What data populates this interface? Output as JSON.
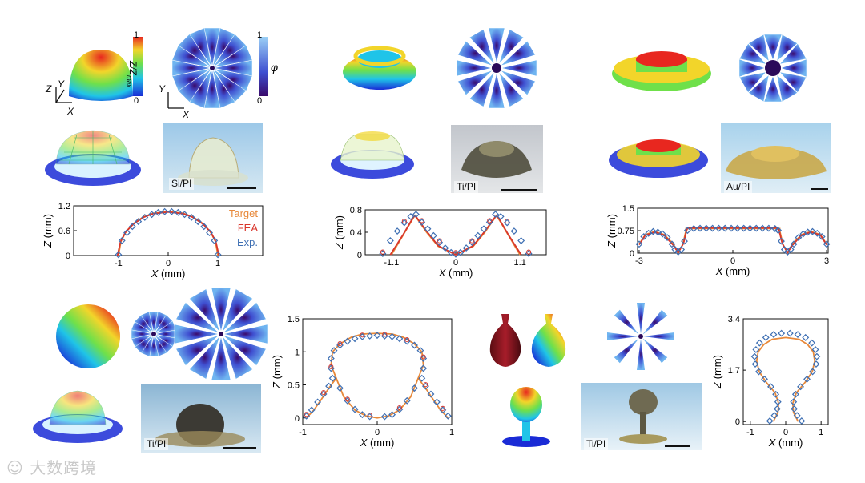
{
  "colorbars": {
    "height": {
      "top": "1",
      "bottom": "0",
      "label_main": "Z/Z",
      "label_sub": "max"
    },
    "angle": {
      "top": "1",
      "bottom": "0",
      "label": "φ"
    }
  },
  "axes_glyph": {
    "x": "X",
    "y": "Y",
    "z": "Z"
  },
  "materials": [
    "Si/PI",
    "Ti/PI",
    "Au/PI",
    "Ti/PI",
    "Ti/PI"
  ],
  "legend": [
    {
      "label": "Target",
      "color": "#E8893A"
    },
    {
      "label": "FEA",
      "color": "#D9352B"
    },
    {
      "label": "Exp.",
      "color": "#3E6FB3"
    }
  ],
  "chart_data": [
    {
      "type": "line",
      "name": "hemisphere",
      "xlabel_var": "X",
      "xlabel_unit": " (mm)",
      "ylabel_var": "Z",
      "ylabel_unit": " (mm)",
      "xlim": [
        -1.9,
        1.9
      ],
      "ylim": [
        0,
        1.2
      ],
      "xticks": [
        -1,
        0,
        1
      ],
      "xticklabels": [
        "-1",
        "0",
        "1"
      ],
      "yticks": [
        0,
        0.6,
        1.2
      ],
      "yticklabels": [
        "0",
        "0.6",
        "1.2"
      ],
      "target": {
        "x": [
          -1.0,
          -0.95,
          -0.85,
          -0.7,
          -0.5,
          -0.3,
          0,
          0.3,
          0.5,
          0.7,
          0.85,
          0.95,
          1.0
        ],
        "y": [
          0,
          0.34,
          0.57,
          0.77,
          0.93,
          1.02,
          1.06,
          1.02,
          0.93,
          0.77,
          0.57,
          0.34,
          0
        ]
      },
      "fea": {
        "x": [
          -1.02,
          -0.96,
          -0.86,
          -0.7,
          -0.5,
          -0.3,
          0,
          0.3,
          0.5,
          0.7,
          0.86,
          0.96,
          1.02
        ],
        "y": [
          0,
          0.33,
          0.56,
          0.76,
          0.92,
          1.01,
          1.05,
          1.01,
          0.92,
          0.76,
          0.56,
          0.33,
          0
        ]
      },
      "exp": {
        "x": [
          -1.0,
          -0.93,
          -0.83,
          -0.72,
          -0.6,
          -0.47,
          -0.33,
          -0.2,
          -0.07,
          0.07,
          0.2,
          0.33,
          0.47,
          0.6,
          0.72,
          0.83,
          0.93,
          1.0
        ],
        "y": [
          0.02,
          0.36,
          0.55,
          0.7,
          0.82,
          0.92,
          0.99,
          1.04,
          1.06,
          1.06,
          1.04,
          0.99,
          0.92,
          0.82,
          0.7,
          0.55,
          0.36,
          0.02
        ]
      }
    },
    {
      "type": "line",
      "name": "cone-ring",
      "xlabel_var": "X",
      "xlabel_unit": " (mm)",
      "ylabel_var": "Z",
      "ylabel_unit": " (mm)",
      "xlim": [
        -1.55,
        1.55
      ],
      "ylim": [
        0,
        0.8
      ],
      "xticks": [
        -1.1,
        0,
        1.1
      ],
      "xticklabels": [
        "-1.1",
        "0",
        "1.1"
      ],
      "yticks": [
        0,
        0.4,
        0.8
      ],
      "yticklabels": [
        "0",
        "0.4",
        "0.8"
      ],
      "target": {
        "x": [
          -1.1,
          -0.9,
          -0.7,
          -0.5,
          -0.3,
          0,
          0.3,
          0.5,
          0.7,
          0.9,
          1.1
        ],
        "y": [
          0,
          0.35,
          0.7,
          0.4,
          0.15,
          0,
          0.15,
          0.4,
          0.7,
          0.35,
          0
        ]
      },
      "fea": {
        "x": [
          -1.12,
          -0.9,
          -0.72,
          -0.68,
          -0.5,
          -0.3,
          0,
          0.3,
          0.5,
          0.68,
          0.72,
          0.9,
          1.12
        ],
        "y": [
          0,
          0.36,
          0.68,
          0.68,
          0.42,
          0.16,
          0,
          0.16,
          0.42,
          0.68,
          0.68,
          0.36,
          0
        ]
      },
      "exp": {
        "x": [
          -1.25,
          -1.12,
          -1.0,
          -0.88,
          -0.77,
          -0.68,
          -0.58,
          -0.48,
          -0.38,
          -0.28,
          -0.18,
          -0.08,
          0.0,
          0.08,
          0.18,
          0.28,
          0.38,
          0.48,
          0.58,
          0.68,
          0.77,
          0.88,
          1.0,
          1.12,
          1.25
        ],
        "y": [
          0.02,
          0.25,
          0.42,
          0.57,
          0.68,
          0.72,
          0.58,
          0.46,
          0.34,
          0.22,
          0.12,
          0.04,
          0.01,
          0.04,
          0.12,
          0.22,
          0.34,
          0.46,
          0.58,
          0.72,
          0.68,
          0.57,
          0.42,
          0.25,
          0.02
        ]
      }
    },
    {
      "type": "line",
      "name": "disk-ring",
      "xlabel_var": "X",
      "xlabel_unit": " (mm)",
      "ylabel_var": "Z",
      "ylabel_unit": " (mm)",
      "xlim": [
        -3.05,
        3.05
      ],
      "ylim": [
        0,
        1.5
      ],
      "xticks": [
        -3,
        0,
        3
      ],
      "xticklabels": [
        "-3",
        "0",
        "3"
      ],
      "yticks": [
        0,
        0.75,
        1.5
      ],
      "yticklabels": [
        "0",
        "0.75",
        "1.5"
      ],
      "target": {
        "x": [
          -3.0,
          -2.8,
          -2.5,
          -2.2,
          -1.9,
          -1.75,
          -1.6,
          -1.5,
          -1.5,
          -0.5,
          0.5,
          1.5,
          1.5,
          1.6,
          1.75,
          1.9,
          2.2,
          2.5,
          2.8,
          3.0
        ],
        "y": [
          0.3,
          0.62,
          0.72,
          0.62,
          0.3,
          0.0,
          0.3,
          0.75,
          0.82,
          0.82,
          0.82,
          0.82,
          0.75,
          0.3,
          0.0,
          0.3,
          0.62,
          0.72,
          0.62,
          0.3
        ]
      },
      "fea": {
        "x": [
          -3.0,
          -2.8,
          -2.5,
          -2.2,
          -1.92,
          -1.75,
          -1.58,
          -1.48,
          -1.45,
          -0.5,
          0.5,
          1.45,
          1.48,
          1.58,
          1.75,
          1.92,
          2.2,
          2.5,
          2.8,
          3.0
        ],
        "y": [
          0.28,
          0.6,
          0.7,
          0.6,
          0.28,
          0.02,
          0.32,
          0.76,
          0.84,
          0.84,
          0.84,
          0.84,
          0.76,
          0.32,
          0.02,
          0.28,
          0.6,
          0.7,
          0.6,
          0.28
        ]
      },
      "exp": {
        "x": [
          -3.0,
          -2.85,
          -2.7,
          -2.55,
          -2.4,
          -2.25,
          -2.1,
          -1.95,
          -1.85,
          -1.75,
          -1.65,
          -1.55,
          -1.45,
          -1.25,
          -1.05,
          -0.85,
          -0.65,
          -0.45,
          -0.25,
          -0.05,
          0.15,
          0.35,
          0.55,
          0.75,
          0.95,
          1.15,
          1.35,
          1.45,
          1.55,
          1.65,
          1.75,
          1.85,
          1.95,
          2.1,
          2.25,
          2.4,
          2.55,
          2.7,
          2.85,
          3.0
        ],
        "y": [
          0.3,
          0.55,
          0.66,
          0.72,
          0.7,
          0.64,
          0.52,
          0.3,
          0.12,
          0.04,
          0.12,
          0.4,
          0.76,
          0.82,
          0.83,
          0.83,
          0.83,
          0.83,
          0.83,
          0.83,
          0.83,
          0.83,
          0.83,
          0.83,
          0.83,
          0.83,
          0.82,
          0.76,
          0.4,
          0.12,
          0.04,
          0.12,
          0.3,
          0.52,
          0.64,
          0.7,
          0.72,
          0.66,
          0.55,
          0.3
        ]
      }
    },
    {
      "type": "line",
      "name": "sphere",
      "xlabel_var": "X",
      "xlabel_unit": " (mm)",
      "ylabel_var": "Z",
      "ylabel_unit": " (mm)",
      "xlim": [
        -1.0,
        1.0
      ],
      "ylim": [
        -0.1,
        1.5
      ],
      "xticks": [
        -1,
        0,
        1
      ],
      "xticklabels": [
        "-1",
        "0",
        "1"
      ],
      "yticks": [
        0,
        0.5,
        1,
        1.5
      ],
      "yticklabels": [
        "0",
        "0.5",
        "1",
        "1.5"
      ],
      "target": {
        "x": [
          -0.95,
          -0.85,
          -0.75,
          -0.65,
          -0.55,
          -0.62,
          -0.6,
          -0.5,
          -0.35,
          -0.2,
          0,
          0.2,
          0.35,
          0.5,
          0.6,
          0.62,
          0.55,
          0.65,
          0.75,
          0.85,
          0.95
        ],
        "y": [
          0,
          0.12,
          0.28,
          0.45,
          0.6,
          0.8,
          1.0,
          1.12,
          1.22,
          1.27,
          1.28,
          1.27,
          1.22,
          1.12,
          1.0,
          0.8,
          0.6,
          0.45,
          0.28,
          0.12,
          0
        ]
      },
      "target_inner": {
        "x": [
          -0.55,
          -0.45,
          -0.3,
          -0.15,
          0,
          0.15,
          0.3,
          0.45,
          0.55
        ],
        "y": [
          0.6,
          0.32,
          0.12,
          0.03,
          0,
          0.03,
          0.12,
          0.32,
          0.6
        ]
      },
      "exp": {
        "x": [
          -0.95,
          -0.88,
          -0.8,
          -0.72,
          -0.65,
          -0.6,
          -0.62,
          -0.62,
          -0.58,
          -0.5,
          -0.4,
          -0.3,
          -0.2,
          -0.1,
          0,
          0.1,
          0.2,
          0.3,
          0.4,
          0.5,
          0.58,
          0.62,
          0.62,
          0.6,
          0.65,
          0.72,
          0.8,
          0.88,
          0.95,
          -0.5,
          -0.4,
          -0.3,
          -0.2,
          -0.1,
          0.1,
          0.2,
          0.3,
          0.4,
          0.5
        ],
        "y": [
          0.03,
          0.12,
          0.24,
          0.36,
          0.48,
          0.6,
          0.75,
          0.9,
          1.02,
          1.1,
          1.16,
          1.2,
          1.23,
          1.24,
          1.25,
          1.24,
          1.23,
          1.2,
          1.16,
          1.1,
          1.02,
          0.9,
          0.75,
          0.6,
          0.48,
          0.36,
          0.24,
          0.12,
          0.03,
          0.45,
          0.26,
          0.13,
          0.05,
          0.02,
          0.02,
          0.05,
          0.13,
          0.26,
          0.45
        ]
      }
    },
    {
      "type": "line",
      "name": "vase",
      "xlabel_var": "X",
      "xlabel_unit": " (mm)",
      "ylabel_var": "Z",
      "ylabel_unit": " (mm)",
      "xlim": [
        -1.2,
        1.2
      ],
      "ylim": [
        -0.1,
        3.4
      ],
      "xticks": [
        -1,
        0,
        1
      ],
      "xticklabels": [
        "-1",
        "0",
        "1"
      ],
      "yticks": [
        0,
        1.7,
        3.4
      ],
      "yticklabels": [
        "0",
        "1.7",
        "3.4"
      ],
      "target": {
        "x": [
          -0.35,
          -0.22,
          -0.2,
          -0.3,
          -0.55,
          -0.75,
          -0.82,
          -0.78,
          -0.62,
          -0.38,
          0,
          0.38,
          0.62,
          0.78,
          0.82,
          0.75,
          0.55,
          0.3,
          0.2,
          0.22,
          0.35
        ],
        "y": [
          0,
          0.3,
          0.6,
          0.95,
          1.3,
          1.65,
          2.0,
          2.3,
          2.55,
          2.72,
          2.78,
          2.72,
          2.55,
          2.3,
          2.0,
          1.65,
          1.3,
          0.95,
          0.6,
          0.3,
          0
        ]
      },
      "exp": {
        "x": [
          -0.45,
          -0.32,
          -0.24,
          -0.22,
          -0.28,
          -0.42,
          -0.6,
          -0.76,
          -0.86,
          -0.88,
          -0.84,
          -0.74,
          -0.56,
          -0.34,
          -0.12,
          0.12,
          0.34,
          0.56,
          0.74,
          0.84,
          0.88,
          0.86,
          0.76,
          0.6,
          0.42,
          0.28,
          0.22,
          0.24,
          0.32,
          0.45
        ],
        "y": [
          0.02,
          0.2,
          0.42,
          0.65,
          0.9,
          1.15,
          1.4,
          1.65,
          1.9,
          2.15,
          2.38,
          2.6,
          2.78,
          2.88,
          2.92,
          2.92,
          2.88,
          2.78,
          2.6,
          2.38,
          2.15,
          1.9,
          1.65,
          1.4,
          1.15,
          0.9,
          0.65,
          0.42,
          0.2,
          0.02
        ]
      }
    }
  ],
  "watermark": "大数跨境"
}
